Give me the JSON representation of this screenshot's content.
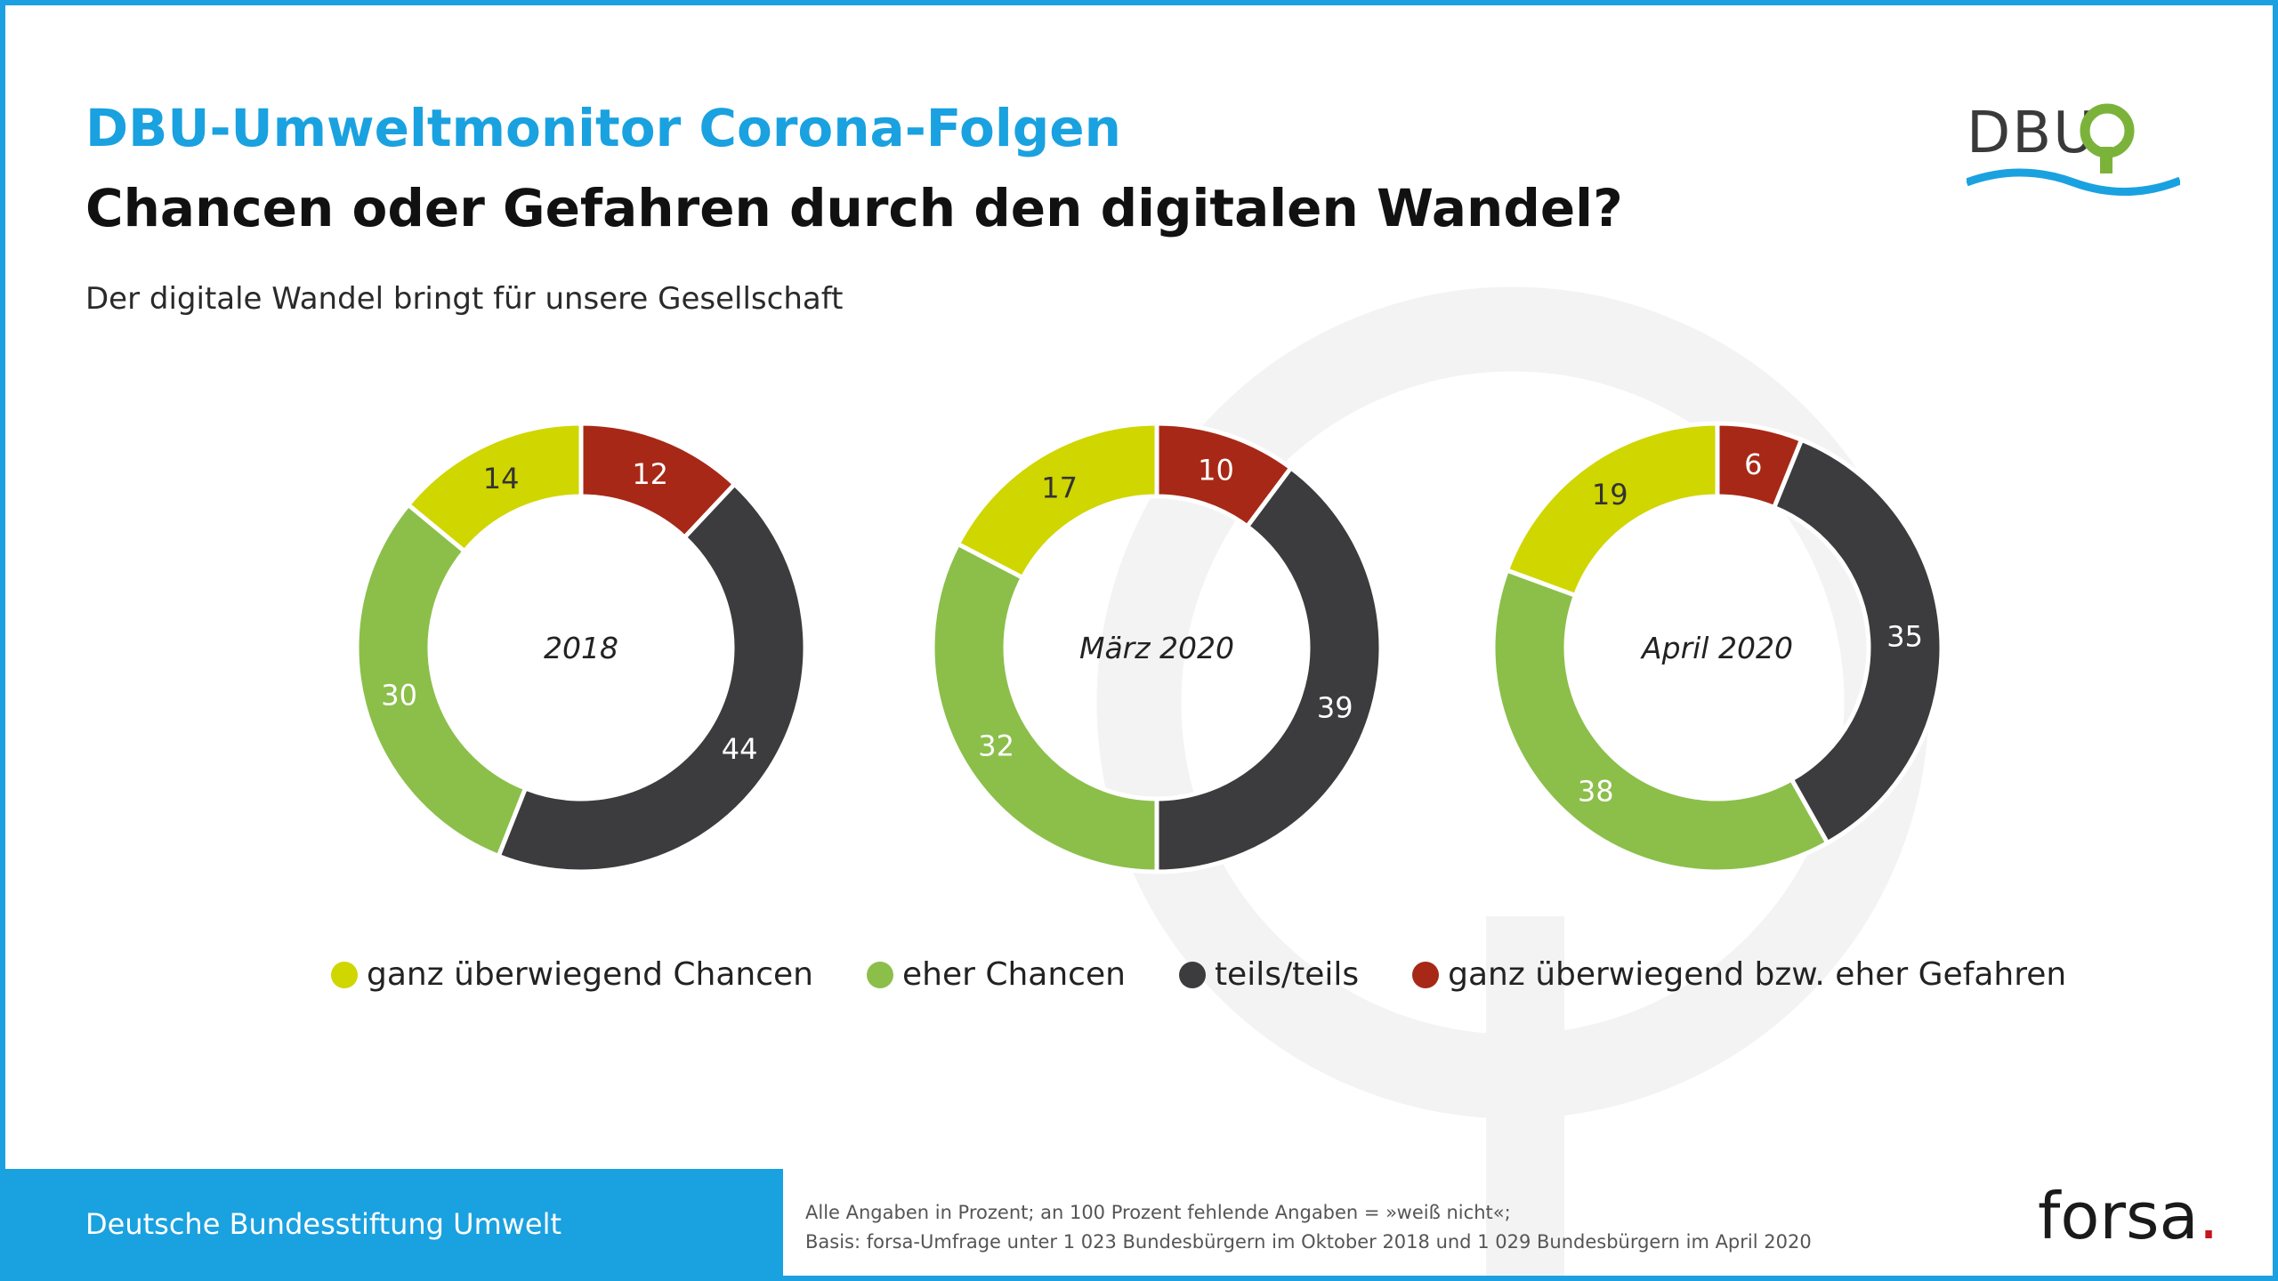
{
  "header": {
    "title": "DBU-Umweltmonitor Corona-Folgen",
    "subtitle": "Chancen oder Gefahren durch den digitalen Wandel?",
    "question": "Der digitale Wandel bringt für unsere Gesellschaft"
  },
  "logo": {
    "text": "DBU"
  },
  "colors": {
    "ganz_chancen": "#cfd600",
    "eher_chancen": "#8bbf4a",
    "teils": "#3c3c3e",
    "gefahren": "#a82817",
    "accent": "#1aa1e0"
  },
  "chart_data": [
    {
      "type": "pie",
      "center_label": "2018",
      "categories": [
        "ganz überwiegend Chancen",
        "eher Chancen",
        "teils/teils",
        "ganz überwiegend bzw. eher Gefahren"
      ],
      "values": [
        14,
        30,
        44,
        12
      ]
    },
    {
      "type": "pie",
      "center_label": "März 2020",
      "categories": [
        "ganz überwiegend Chancen",
        "eher Chancen",
        "teils/teils",
        "ganz überwiegend bzw. eher Gefahren"
      ],
      "values": [
        17,
        32,
        39,
        10
      ]
    },
    {
      "type": "pie",
      "center_label": "April 2020",
      "categories": [
        "ganz überwiegend Chancen",
        "eher Chancen",
        "teils/teils",
        "ganz überwiegend bzw. eher Gefahren"
      ],
      "values": [
        19,
        38,
        35,
        6
      ]
    }
  ],
  "legend": [
    {
      "label": "ganz überwiegend Chancen",
      "color": "#cfd600"
    },
    {
      "label": "eher Chancen",
      "color": "#8bbf4a"
    },
    {
      "label": "teils/teils",
      "color": "#3c3c3e"
    },
    {
      "label": "ganz überwiegend bzw. eher Gefahren",
      "color": "#a82817"
    }
  ],
  "footer": {
    "org": "Deutsche Bundesstiftung Umwelt",
    "note_line1": "Alle Angaben in Prozent; an 100 Prozent fehlende Angaben = »weiß nicht«;",
    "note_line2": "Basis: forsa-Umfrage unter 1 023 Bundesbürgern im Oktober 2018 und 1 029 Bundesbürgern im April 2020",
    "brand": "forsa",
    "brand_dot": "."
  }
}
